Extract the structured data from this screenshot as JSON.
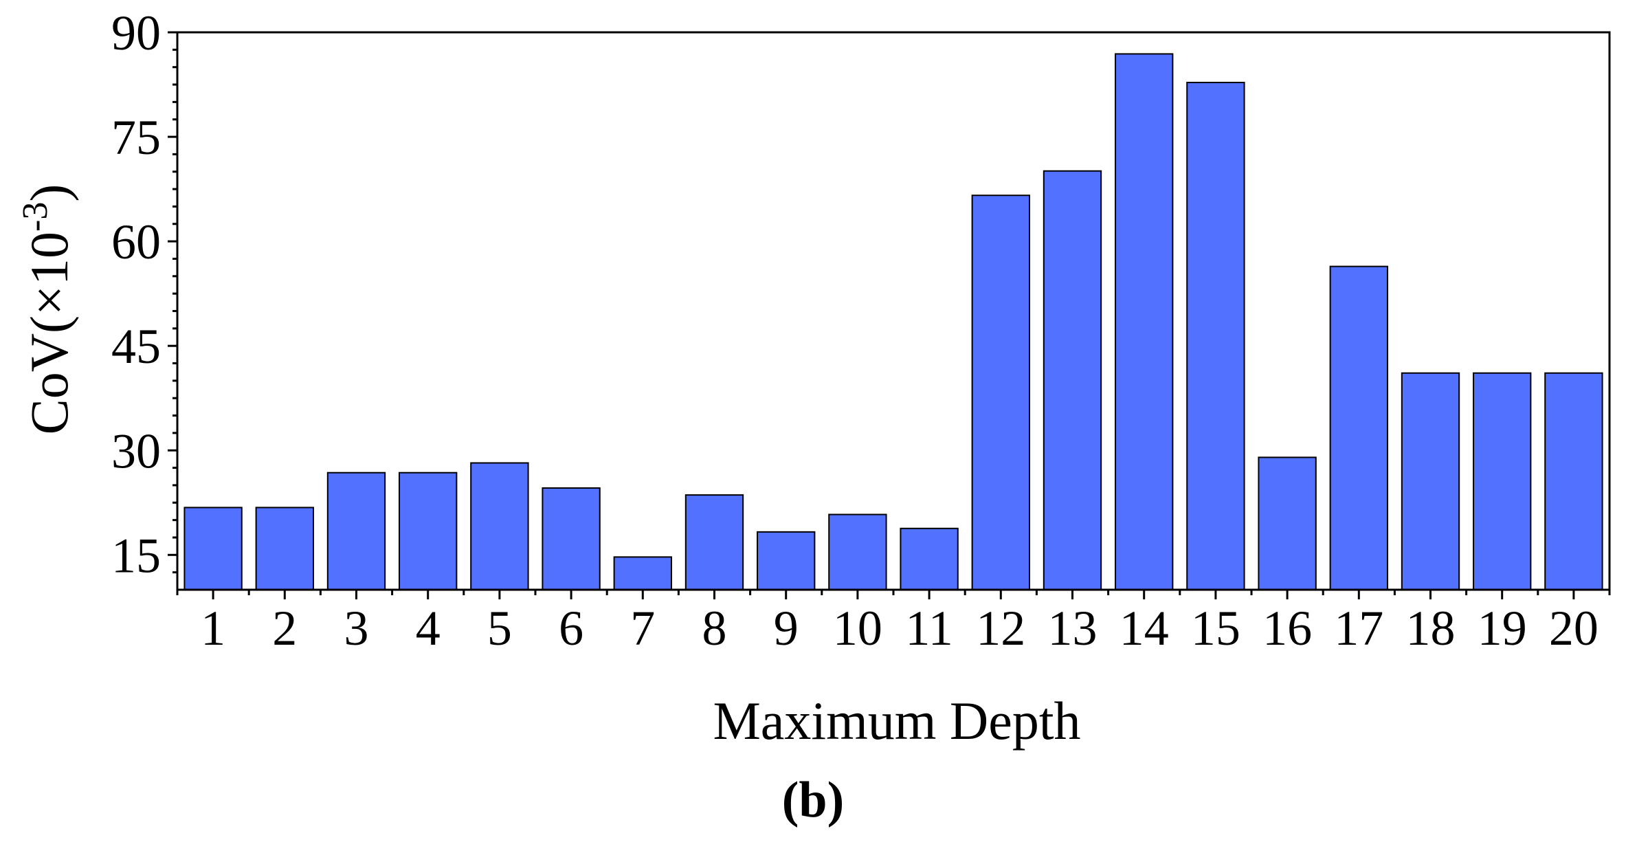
{
  "chart_data": {
    "type": "bar",
    "categories": [
      "1",
      "2",
      "3",
      "4",
      "5",
      "6",
      "7",
      "8",
      "9",
      "10",
      "11",
      "12",
      "13",
      "14",
      "15",
      "16",
      "17",
      "18",
      "19",
      "20"
    ],
    "values": [
      21.8,
      21.8,
      26.8,
      26.8,
      28.2,
      24.6,
      14.7,
      23.6,
      18.3,
      20.8,
      18.8,
      66.6,
      70.1,
      86.9,
      82.8,
      29.0,
      56.4,
      41.1,
      41.1,
      41.1
    ],
    "xlabel": "Maximum Depth",
    "ylabel_main": "CoV(×10",
    "ylabel_sup": "-3",
    "ylabel_close": ")",
    "ylim": [
      10,
      90
    ],
    "yticks": [
      15,
      30,
      45,
      60,
      75,
      90
    ],
    "bar_color": "#5271ff",
    "grid": false,
    "panel_label": "(b)"
  }
}
